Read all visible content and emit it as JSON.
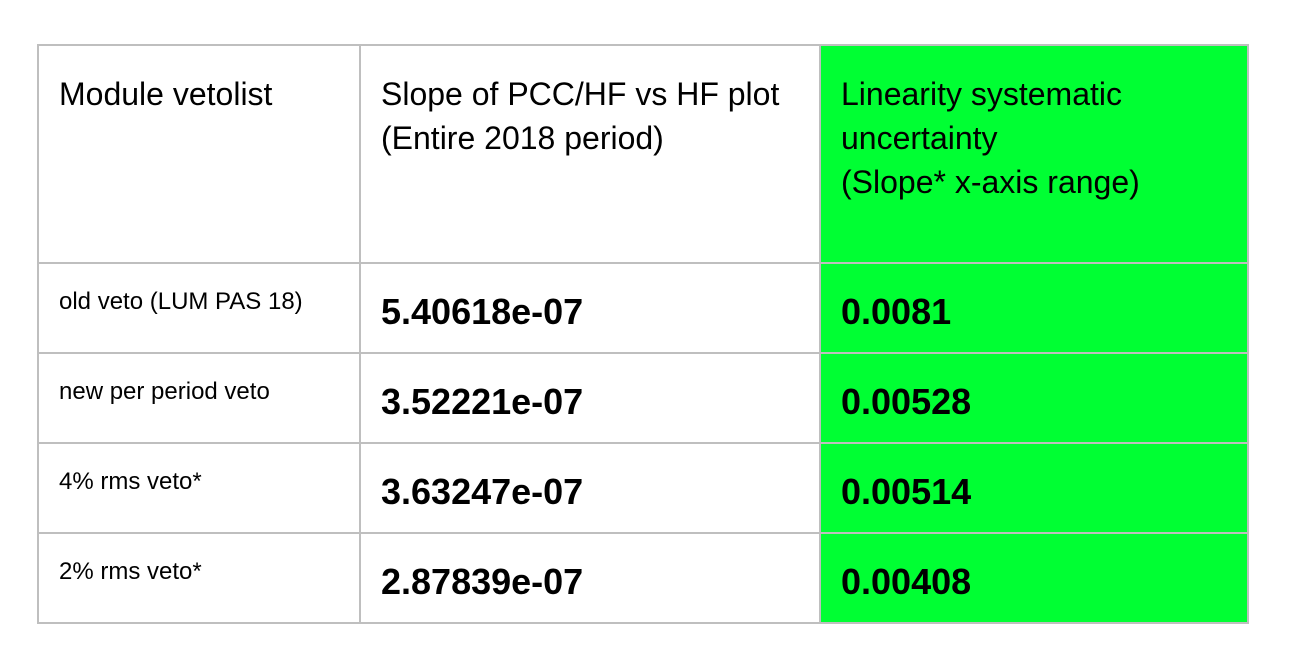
{
  "table": {
    "headers": [
      "Module vetolist",
      "Slope of PCC/HF vs HF plot\n(Entire 2018 period)",
      "Linearity systematic\nuncertainty\n(Slope* x-axis range)"
    ],
    "rows": [
      {
        "label": "old veto (LUM PAS 18)",
        "slope": "5.40618e-07",
        "uncertainty": "0.0081"
      },
      {
        "label": "new per period veto",
        "slope": "3.52221e-07",
        "uncertainty": "0.00528"
      },
      {
        "label": "4% rms veto*",
        "slope": "3.63247e-07",
        "uncertainty": "0.00514"
      },
      {
        "label": "2% rms veto*",
        "slope": "2.87839e-07",
        "uncertainty": "0.00408"
      }
    ],
    "highlight_color": "#00ff33",
    "border_color": "#bfbfbf"
  }
}
